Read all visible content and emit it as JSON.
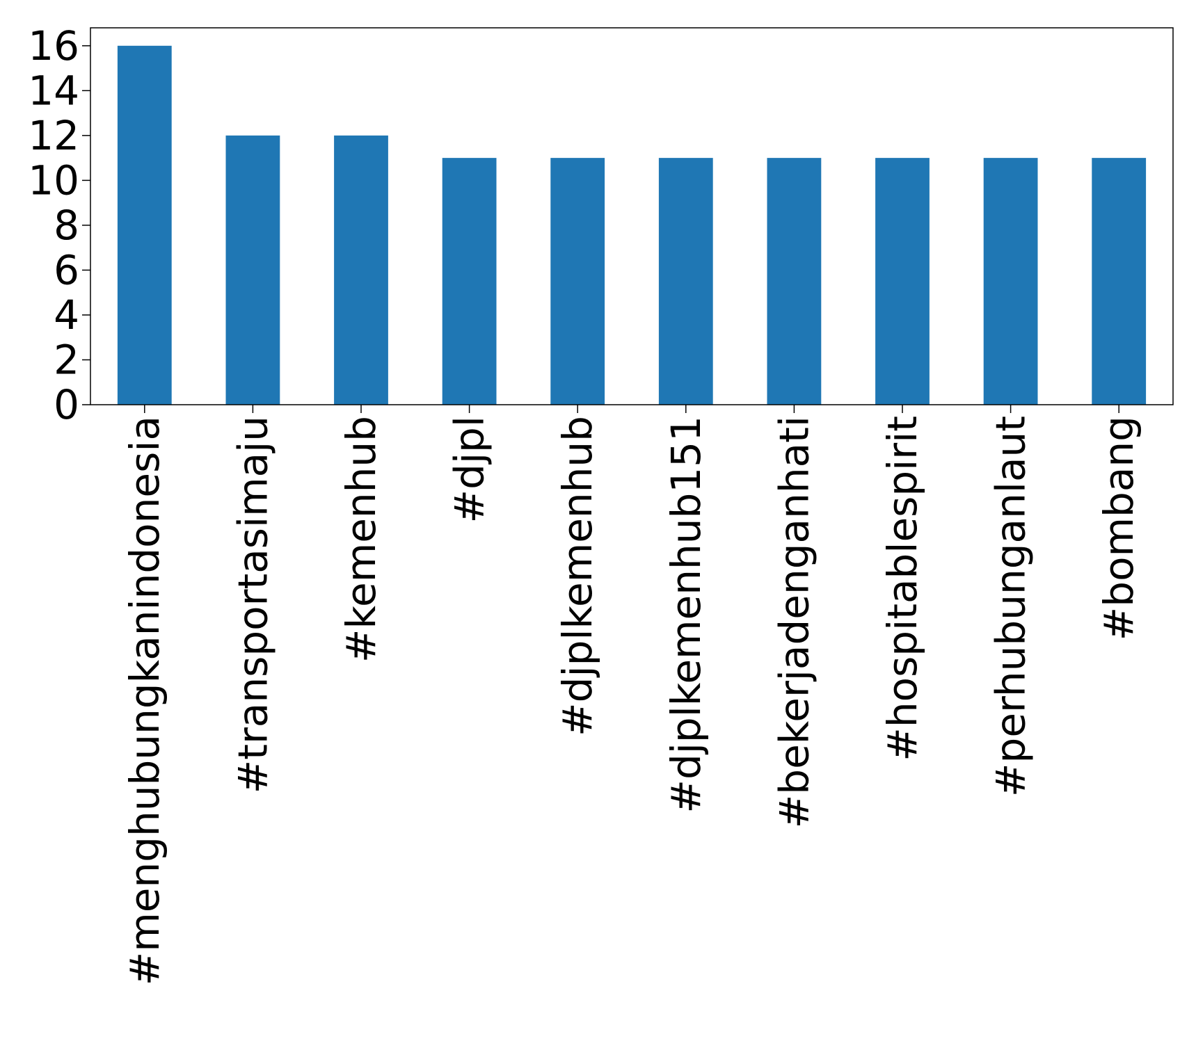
{
  "chart_data": {
    "type": "bar",
    "categories": [
      "#menghubungkanindonesia",
      "#transportasimaju",
      "#kemenhub",
      "#djpl",
      "#djplkemenhub",
      "#djplkemenhub151",
      "#bekerjadenganhati",
      "#hospitablespirit",
      "#perhubunganlaut",
      "#bombang"
    ],
    "values": [
      16,
      12,
      12,
      11,
      11,
      11,
      11,
      11,
      11,
      11
    ],
    "title": "",
    "xlabel": "",
    "ylabel": "",
    "ylim": [
      0,
      16.8
    ],
    "yticks": [
      "0",
      "2",
      "4",
      "6",
      "8",
      "10",
      "12",
      "14",
      "16"
    ],
    "bar_color": "#1f77b4",
    "grid": false,
    "legend": "none",
    "x_tick_rotation": "vertical"
  }
}
